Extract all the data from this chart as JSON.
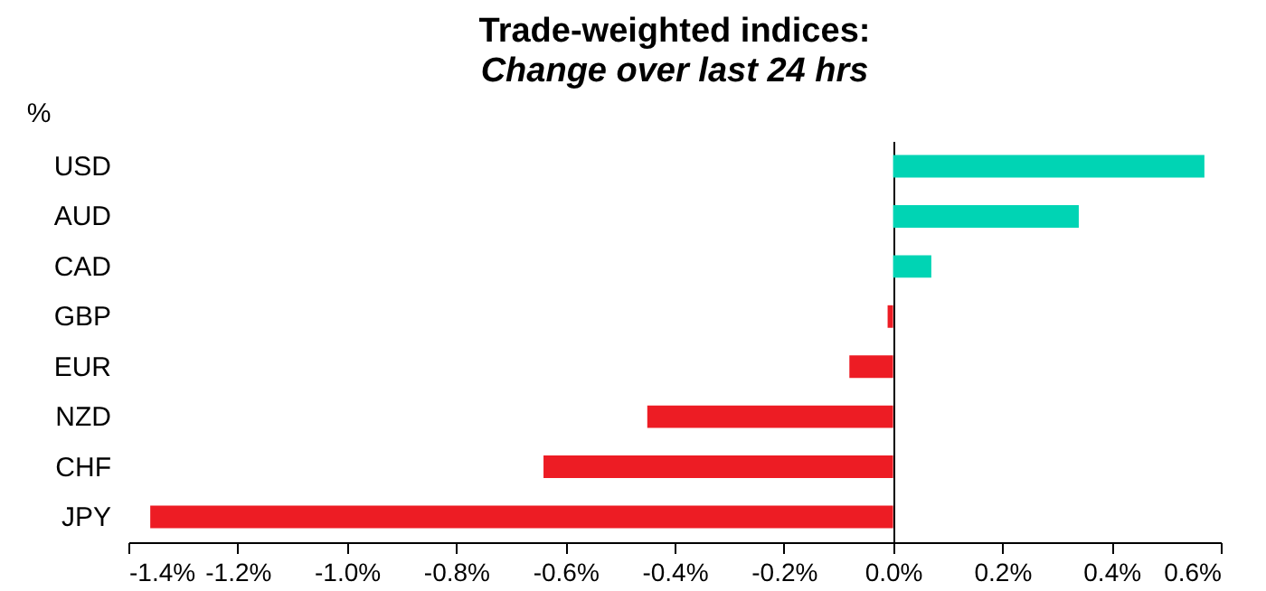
{
  "chart_data": {
    "type": "bar",
    "orientation": "horizontal",
    "title": "Trade-weighted indices:",
    "subtitle": "Change over last 24 hrs",
    "ylabel": "%",
    "categories": [
      "USD",
      "AUD",
      "CAD",
      "GBP",
      "EUR",
      "NZD",
      "CHF",
      "JPY"
    ],
    "values": [
      0.57,
      0.34,
      0.07,
      -0.01,
      -0.08,
      -0.45,
      -0.64,
      -1.36
    ],
    "colors": [
      "#00d4b4",
      "#00d4b4",
      "#00d4b4",
      "#ed1c24",
      "#ed1c24",
      "#ed1c24",
      "#ed1c24",
      "#ed1c24"
    ],
    "xlim": [
      -1.4,
      0.6
    ],
    "xticks": [
      {
        "value": -1.4,
        "label": "-1.4%"
      },
      {
        "value": -1.2,
        "label": "-1.2%"
      },
      {
        "value": -1.0,
        "label": "-1.0%"
      },
      {
        "value": -0.8,
        "label": "-0.8%"
      },
      {
        "value": -0.6,
        "label": "-0.6%"
      },
      {
        "value": -0.4,
        "label": "-0.4%"
      },
      {
        "value": -0.2,
        "label": "-0.2%"
      },
      {
        "value": 0,
        "label": "0.0%"
      },
      {
        "value": 0.2,
        "label": "0.2%"
      },
      {
        "value": 0.4,
        "label": "0.4%"
      },
      {
        "value": 0.6,
        "label": "0.6%"
      }
    ]
  }
}
